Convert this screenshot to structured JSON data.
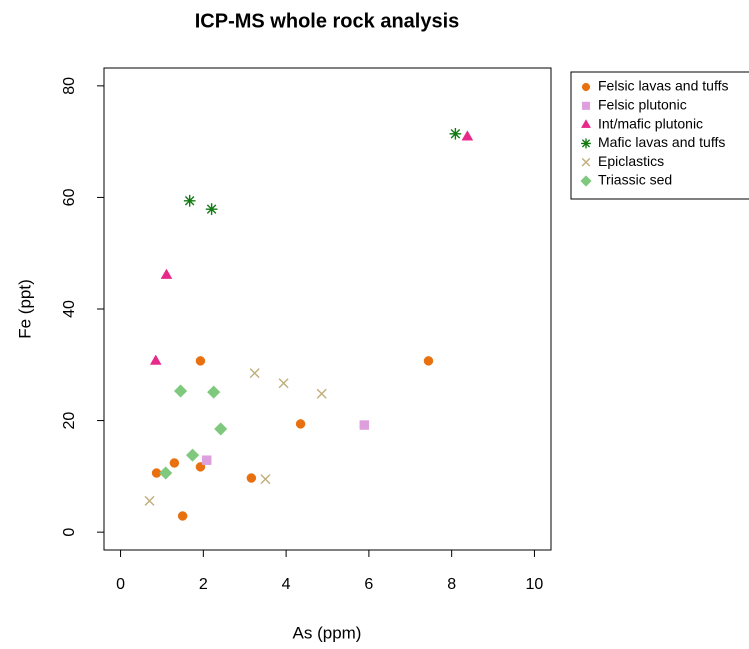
{
  "chart_data": {
    "type": "scatter",
    "title": "ICP-MS whole rock analysis",
    "x_label": "As (ppm)",
    "y_label": "Fe (ppt)",
    "xlim": [
      -0.4,
      10.4
    ],
    "xticks": [
      0,
      2,
      4,
      6,
      8,
      10
    ],
    "ylim": [
      -3.2,
      83.2
    ],
    "yticks": [
      0,
      20,
      40,
      60,
      80
    ],
    "legend": "outside-right",
    "series": [
      {
        "name": "Felsic lavas and tuffs",
        "color": "#e8700f",
        "marker": "circle",
        "x": [
          0.87,
          1.3,
          1.93,
          1.93,
          1.5,
          3.16,
          4.35,
          7.44
        ],
        "values": [
          10.6,
          12.4,
          30.7,
          11.7,
          2.9,
          9.7,
          19.4,
          30.7
        ]
      },
      {
        "name": "Felsic plutonic",
        "color": "#dda0dd",
        "marker": "square",
        "x": [
          2.08,
          5.89
        ],
        "values": [
          12.9,
          19.2
        ]
      },
      {
        "name": "Int/mafic plutonic",
        "color": "#e7298a",
        "marker": "triangle",
        "x": [
          0.85,
          1.11,
          8.38
        ],
        "values": [
          30.7,
          46.1,
          70.9
        ]
      },
      {
        "name": "Mafic lavas and tuffs",
        "color": "#137a13",
        "marker": "asterisk",
        "x": [
          1.67,
          2.2,
          8.09
        ],
        "values": [
          59.4,
          57.9,
          71.4
        ]
      },
      {
        "name": "Epiclastics",
        "color": "#bfae7a",
        "marker": "x",
        "x": [
          0.7,
          3.24,
          3.94,
          4.86,
          3.5
        ],
        "values": [
          5.6,
          28.5,
          26.7,
          24.8,
          9.5
        ]
      },
      {
        "name": "Triassic sed",
        "color": "#7fc97f",
        "marker": "diamond",
        "x": [
          1.09,
          1.74,
          1.45,
          2.25,
          2.42
        ],
        "values": [
          10.6,
          13.8,
          25.3,
          25.1,
          18.5
        ]
      }
    ]
  }
}
